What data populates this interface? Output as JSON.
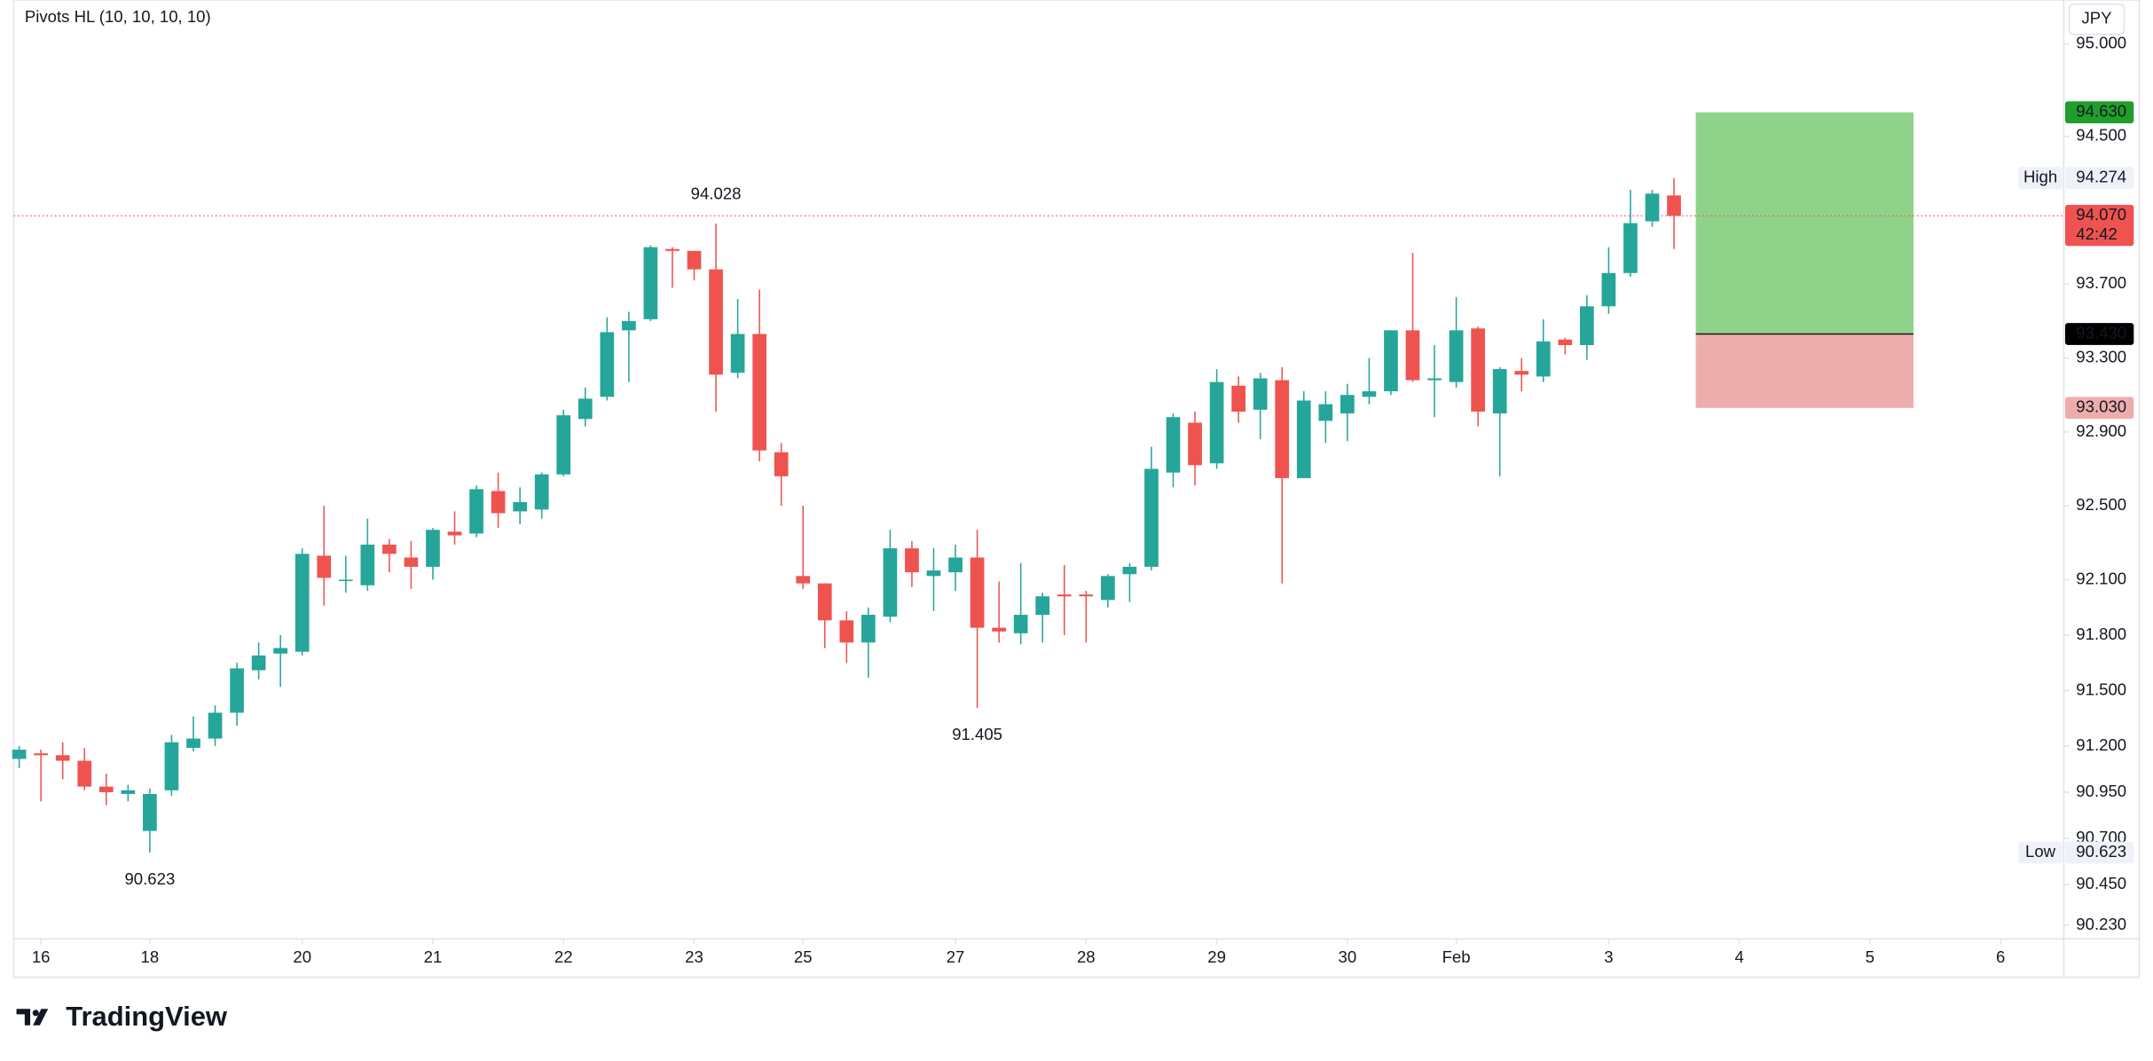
{
  "chart_data": {
    "type": "candlestick",
    "title": "Pivots HL (10, 10, 10, 10)",
    "currency": "JPY",
    "brand": "TradingView",
    "up_color": "#26a69a",
    "down_color": "#ef5350",
    "open": [
      91.13,
      91.16,
      91.15,
      91.12,
      90.98,
      90.94,
      90.74,
      90.96,
      91.19,
      91.24,
      91.38,
      91.61,
      91.7,
      91.71,
      92.23,
      92.1,
      92.07,
      92.29,
      92.22,
      92.17,
      92.36,
      92.35,
      92.58,
      92.47,
      92.48,
      92.67,
      92.97,
      93.09,
      93.45,
      93.51,
      93.89,
      93.88,
      93.78,
      93.22,
      93.43,
      92.79,
      92.12,
      92.08,
      91.88,
      91.76,
      91.9,
      92.27,
      92.12,
      92.14,
      92.22,
      91.84,
      91.81,
      91.91,
      92.02,
      92.02,
      91.99,
      92.13,
      92.17,
      92.68,
      92.95,
      92.73,
      93.15,
      93.02,
      93.18,
      92.65,
      92.96,
      93.0,
      93.09,
      93.12,
      93.45,
      93.18,
      93.17,
      93.46,
      93.0,
      93.23,
      93.2,
      93.4,
      93.37,
      93.58,
      93.76,
      94.04,
      94.18
    ],
    "high": [
      91.2,
      91.18,
      91.22,
      91.19,
      91.05,
      90.99,
      90.97,
      91.26,
      91.36,
      91.42,
      91.65,
      91.76,
      91.8,
      92.27,
      92.5,
      92.23,
      92.43,
      92.32,
      92.31,
      92.38,
      92.47,
      92.61,
      92.68,
      92.6,
      92.68,
      93.02,
      93.14,
      93.52,
      93.55,
      93.91,
      93.9,
      93.88,
      94.028,
      93.62,
      93.67,
      92.84,
      92.5,
      92.08,
      91.93,
      91.95,
      92.37,
      92.31,
      92.27,
      92.29,
      92.37,
      92.09,
      92.19,
      92.03,
      92.18,
      92.04,
      92.13,
      92.19,
      92.82,
      93.0,
      93.01,
      93.24,
      93.2,
      93.22,
      93.25,
      93.12,
      93.12,
      93.16,
      93.3,
      93.45,
      93.87,
      93.37,
      93.63,
      93.47,
      93.25,
      93.3,
      93.51,
      93.41,
      93.64,
      93.9,
      94.21,
      94.21,
      94.274
    ],
    "low": [
      91.08,
      90.9,
      91.02,
      90.96,
      90.88,
      90.9,
      90.623,
      90.93,
      91.17,
      91.2,
      91.31,
      91.56,
      91.52,
      91.69,
      91.96,
      92.03,
      92.04,
      92.14,
      92.05,
      92.1,
      92.29,
      92.33,
      92.38,
      92.4,
      92.43,
      92.66,
      92.93,
      93.07,
      93.17,
      93.5,
      93.68,
      93.72,
      93.01,
      93.19,
      92.74,
      92.5,
      92.05,
      91.73,
      91.65,
      91.57,
      91.87,
      92.06,
      91.93,
      92.04,
      91.405,
      91.76,
      91.75,
      91.76,
      91.8,
      91.76,
      91.95,
      91.98,
      92.15,
      92.6,
      92.61,
      92.7,
      92.95,
      92.86,
      92.08,
      92.65,
      92.84,
      92.85,
      93.05,
      93.1,
      93.17,
      92.98,
      93.14,
      92.93,
      92.66,
      93.12,
      93.17,
      93.32,
      93.29,
      93.54,
      93.74,
      94.01,
      93.89
    ],
    "close": [
      91.18,
      91.15,
      91.12,
      90.98,
      90.95,
      90.96,
      90.94,
      91.22,
      91.24,
      91.38,
      91.62,
      91.69,
      91.73,
      92.24,
      92.11,
      92.1,
      92.29,
      92.24,
      92.17,
      92.37,
      92.34,
      92.59,
      92.46,
      92.52,
      92.67,
      92.99,
      93.08,
      93.44,
      93.5,
      93.9,
      93.88,
      93.78,
      93.21,
      93.43,
      92.8,
      92.66,
      92.08,
      91.88,
      91.76,
      91.91,
      92.27,
      92.14,
      92.15,
      92.22,
      91.84,
      91.82,
      91.91,
      92.01,
      92.01,
      92.01,
      92.12,
      92.17,
      92.7,
      92.98,
      92.72,
      93.17,
      93.01,
      93.19,
      92.65,
      93.07,
      93.05,
      93.1,
      93.12,
      93.45,
      93.18,
      93.19,
      93.45,
      93.01,
      93.24,
      93.21,
      93.39,
      93.37,
      93.58,
      93.76,
      94.03,
      94.19,
      94.07
    ],
    "xlim": [
      -0.25,
      93.9
    ],
    "xticks": [
      {
        "value": 1,
        "label": "16"
      },
      {
        "value": 6,
        "label": "18"
      },
      {
        "value": 13,
        "label": "20"
      },
      {
        "value": 19,
        "label": "21"
      },
      {
        "value": 25,
        "label": "22"
      },
      {
        "value": 31,
        "label": "23"
      },
      {
        "value": 36,
        "label": "25"
      },
      {
        "value": 43,
        "label": "27"
      },
      {
        "value": 49,
        "label": "28"
      },
      {
        "value": 55,
        "label": "29"
      },
      {
        "value": 61,
        "label": "30"
      },
      {
        "value": 66,
        "label": "Feb"
      },
      {
        "value": 73,
        "label": "3"
      },
      {
        "value": 79,
        "label": "4"
      },
      {
        "value": 85,
        "label": "5"
      },
      {
        "value": 91,
        "label": "6"
      }
    ],
    "ylim": [
      90.156,
      95.238
    ],
    "yticks": [
      {
        "value": 95,
        "label": "95.000"
      },
      {
        "value": 94.5,
        "label": "94.500"
      },
      {
        "value": 93.7,
        "label": "93.700"
      },
      {
        "value": 93.3,
        "label": "93.300"
      },
      {
        "value": 92.9,
        "label": "92.900"
      },
      {
        "value": 92.5,
        "label": "92.500"
      },
      {
        "value": 92.1,
        "label": "92.100"
      },
      {
        "value": 91.8,
        "label": "91.800"
      },
      {
        "value": 91.5,
        "label": "91.500"
      },
      {
        "value": 91.2,
        "label": "91.200"
      },
      {
        "value": 90.95,
        "label": "90.950"
      },
      {
        "value": 90.7,
        "label": "90.700"
      },
      {
        "value": 90.45,
        "label": "90.450"
      },
      {
        "value": 90.23,
        "label": "90.230"
      }
    ],
    "pivots": [
      {
        "index": 6,
        "kind": "low",
        "label": "90.623"
      },
      {
        "index": 32,
        "kind": "high",
        "label": "94.028"
      },
      {
        "index": 44,
        "kind": "low",
        "label": "91.405"
      }
    ],
    "markers": [
      {
        "name": "High",
        "value": 94.274,
        "value_label": "94.274"
      },
      {
        "name": "Low",
        "value": 90.623,
        "value_label": "90.623"
      }
    ],
    "last_price": {
      "value": 94.07,
      "label": "94.070",
      "countdown": "42:42"
    },
    "position": {
      "x_start": 77,
      "x_end": 87,
      "target": 94.63,
      "target_label": "94.630",
      "entry": 93.43,
      "entry_label": "93.430",
      "stop": 93.03,
      "stop_label": "93.030"
    }
  }
}
